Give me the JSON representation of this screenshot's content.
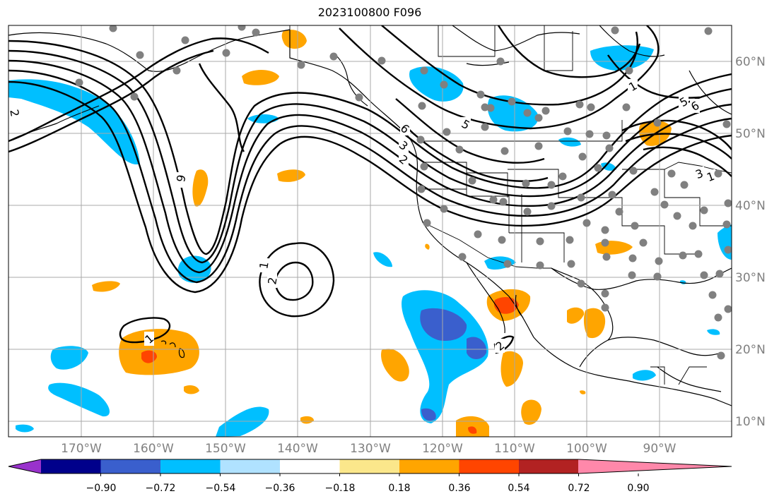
{
  "title": "2023100800 F096",
  "lon_labels": [
    "170°W",
    "160°W",
    "150°W",
    "140°W",
    "130°W",
    "120°W",
    "110°W",
    "100°W",
    "90°W"
  ],
  "lat_labels": [
    "60°N",
    "50°N",
    "40°N",
    "30°N",
    "20°N",
    "10°N"
  ],
  "colorbar": {
    "tick_labels": [
      "−0.90",
      "−0.72",
      "−0.54",
      "−0.36",
      "−0.18",
      "0.18",
      "0.36",
      "0.54",
      "0.72",
      "0.90"
    ],
    "colors": [
      "#9932cc",
      "#00008b",
      "#3a5fcd",
      "#00bfff",
      "#b0e2ff",
      "#ffffff",
      "#fbe78b",
      "#ffa500",
      "#ff4500",
      "#b22222",
      "#ff88aa"
    ]
  },
  "contour_labels": [
    "6",
    "1",
    "2",
    "1",
    "2",
    "6",
    "5",
    "3",
    "2",
    "6",
    "5",
    "1",
    "2",
    "3",
    "1"
  ],
  "colors": {
    "land_outline": "#000000",
    "grid": "#a8a8a8",
    "station_dot": "#808080",
    "neg_light": "#00bfff",
    "neg_dark": "#3a5fcd",
    "pos_light": "#ffa500",
    "pos_dark": "#ff4500"
  }
}
